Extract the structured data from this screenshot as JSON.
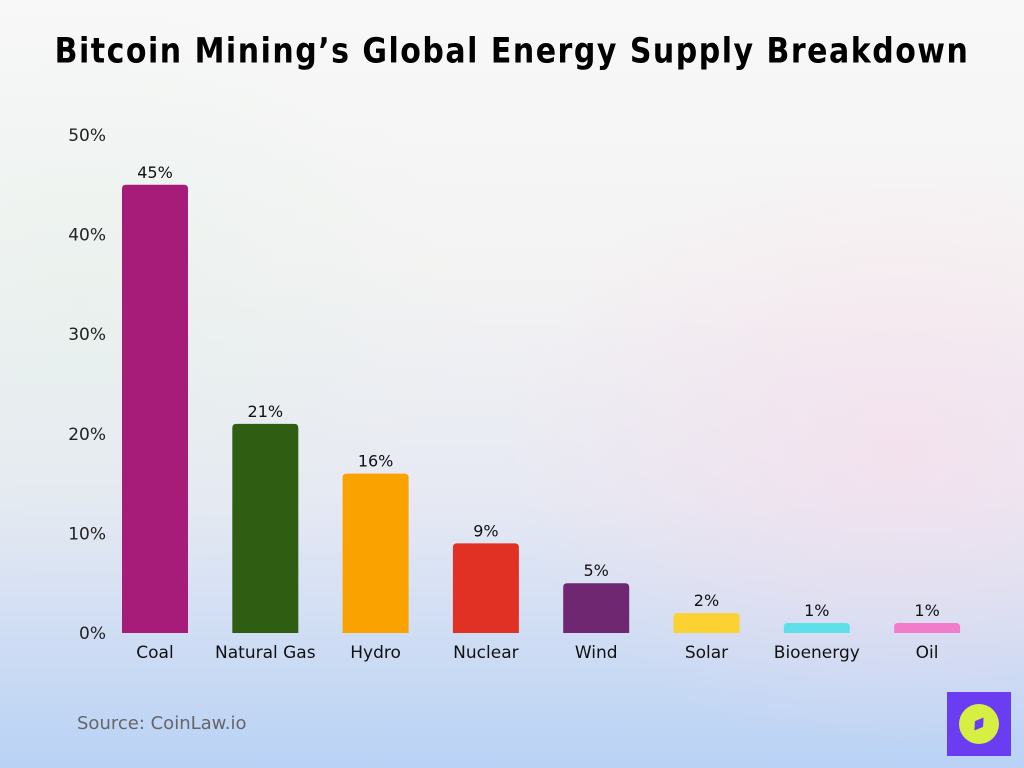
{
  "chart_data": {
    "type": "bar",
    "title": "Bitcoin Mining’s Global Energy Supply Breakdown",
    "categories": [
      "Coal",
      "Natural Gas",
      "Hydro",
      "Nuclear",
      "Wind",
      "Solar",
      "Bioenergy",
      "Oil"
    ],
    "values": [
      45,
      21,
      16,
      9,
      5,
      2,
      1,
      1
    ],
    "data_labels": [
      "45%",
      "21%",
      "16%",
      "9%",
      "5%",
      "2%",
      "1%",
      "1%"
    ],
    "colors": [
      "#a61c78",
      "#2f5e12",
      "#f9a200",
      "#e03124",
      "#6e2770",
      "#fcd232",
      "#5ee0e8",
      "#f27ccc"
    ],
    "yticks": [
      0,
      10,
      20,
      30,
      40,
      50
    ],
    "ytick_labels": [
      "0%",
      "10%",
      "20%",
      "30%",
      "40%",
      "50%"
    ],
    "ylim": [
      0,
      50
    ],
    "xlabel": "",
    "ylabel": "",
    "grid": false,
    "legend": "none"
  },
  "source": "Source: CoinLaw.io",
  "logo_icon": "compass-icon"
}
